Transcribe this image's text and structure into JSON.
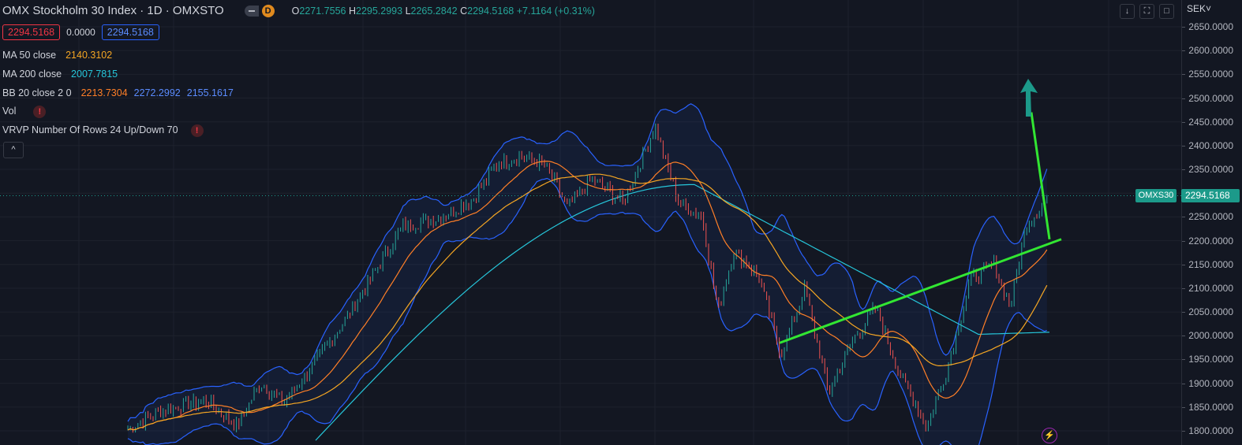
{
  "header": {
    "title": "OMX Stockholm 30 Index · 1D · OMXSTO",
    "mode_badge": "D",
    "ohlc": {
      "o_label": "O",
      "o": "2271.7556",
      "h_label": "H",
      "h": "2295.2993",
      "l_label": "L",
      "l": "2265.2842",
      "c_label": "C",
      "c": "2294.5168",
      "change": "+7.1164 (+0.31%)"
    }
  },
  "price_boxes": {
    "bid": "2294.5168",
    "spread": "0.0000",
    "ask": "2294.5168"
  },
  "indicators": {
    "ma50": {
      "label": "MA 50 close",
      "value": "2140.3102",
      "color": "#f5a623"
    },
    "ma200": {
      "label": "MA 200 close",
      "value": "2007.7815",
      "color": "#26c6da"
    },
    "bb": {
      "label": "BB 20 close 2 0",
      "basis": "2213.7304",
      "upper": "2272.2992",
      "lower": "2155.1617",
      "basis_color": "#ff7f27",
      "band_color": "#2962ff"
    },
    "vol": {
      "label": "Vol",
      "alert": "!"
    },
    "vrvp": {
      "label": "VRVP Number Of Rows 24 Up/Down 70",
      "alert": "!"
    }
  },
  "controls": {
    "collapse_icon": "chevron-up-icon",
    "collapse_glyph": "^",
    "scroll_down_glyph": "↓",
    "fullscreen_glyph": "⛶",
    "maximize_glyph": "□",
    "flash_glyph": "⚡"
  },
  "price_axis": {
    "currency": "SEK",
    "currency_arrow": "˅",
    "labels": [
      "2650.0000",
      "2600.0000",
      "2550.0000",
      "2500.0000",
      "2450.0000",
      "2400.0000",
      "2350.0000",
      "2300.0000",
      "2250.0000",
      "2200.0000",
      "2150.0000",
      "2100.0000",
      "2050.0000",
      "2000.0000",
      "1950.0000",
      "1900.0000",
      "1850.0000",
      "1800.0000"
    ],
    "current_symbol": "OMXS30",
    "current_price": "2294.5168"
  },
  "colors": {
    "background": "#131722",
    "up_candle": "#26a69a",
    "down_candle": "#ef5350",
    "trendline": "#32e632",
    "arrow": "#1c9a8a"
  },
  "chart_data": {
    "type": "line",
    "price_unit": "SEK",
    "price_levels": [
      2650,
      2600,
      2550,
      2500,
      2450,
      2400,
      2350,
      2300,
      2250,
      2200,
      2150,
      2100,
      2050,
      2000,
      1950,
      1900,
      1850,
      1800
    ],
    "last_price": 2294.5168,
    "series": [
      {
        "name": "MA 50 close",
        "last": 2140.3102
      },
      {
        "name": "MA 200 close",
        "last": 2007.7815
      },
      {
        "name": "BB 20 close 2 0",
        "basis": 2213.7304,
        "upper": 2272.2992,
        "lower": 2155.1617
      }
    ]
  }
}
